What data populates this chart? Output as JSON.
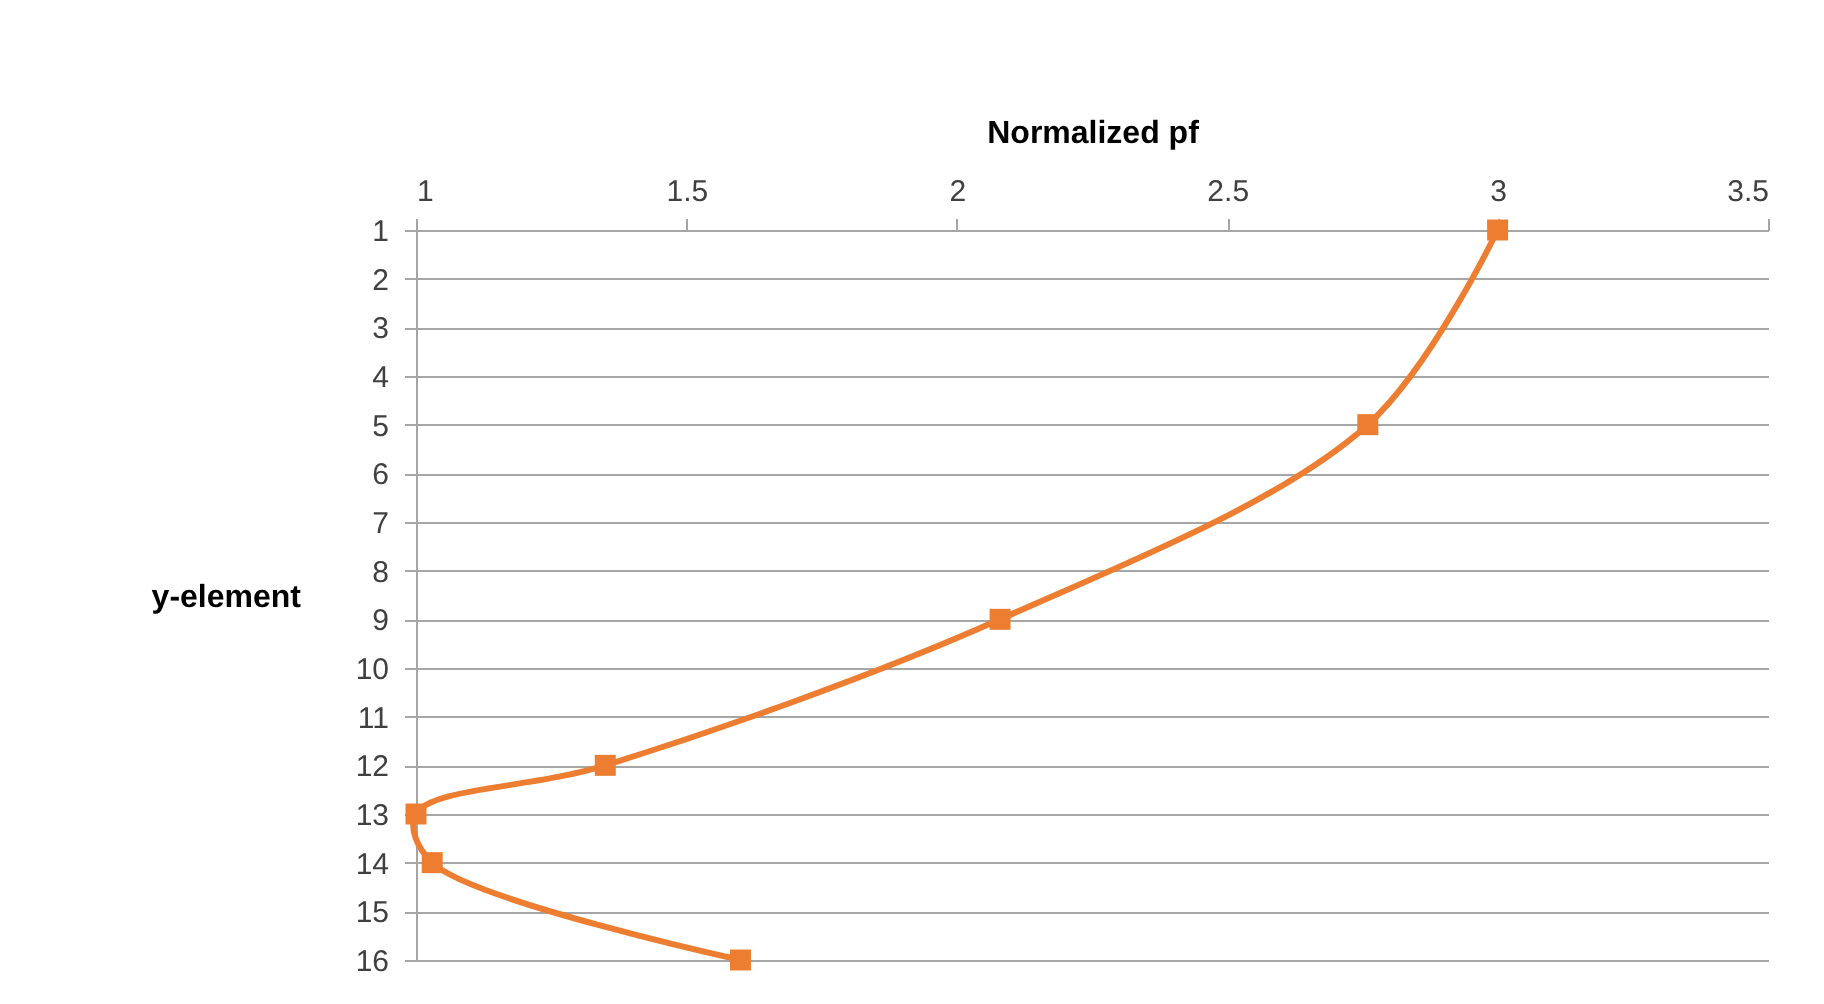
{
  "chart_data": {
    "type": "line",
    "xlabel": "Normalized pf",
    "ylabel": "y-element",
    "xlim": [
      1,
      3.5
    ],
    "xticks": [
      1,
      1.5,
      2,
      2.5,
      3,
      3.5
    ],
    "ylim": [
      16,
      1
    ],
    "yticks": [
      1,
      2,
      3,
      4,
      5,
      6,
      7,
      8,
      9,
      10,
      11,
      12,
      13,
      14,
      15,
      16
    ],
    "grid": "y",
    "marker": "square",
    "line_style": "solid",
    "series": [
      {
        "color": "#ed7d31",
        "x": [
          3.0,
          2.76,
          2.08,
          1.35,
          1.0,
          1.03,
          1.6
        ],
        "values": [
          1,
          5,
          9,
          12,
          13,
          14,
          16
        ]
      }
    ]
  }
}
